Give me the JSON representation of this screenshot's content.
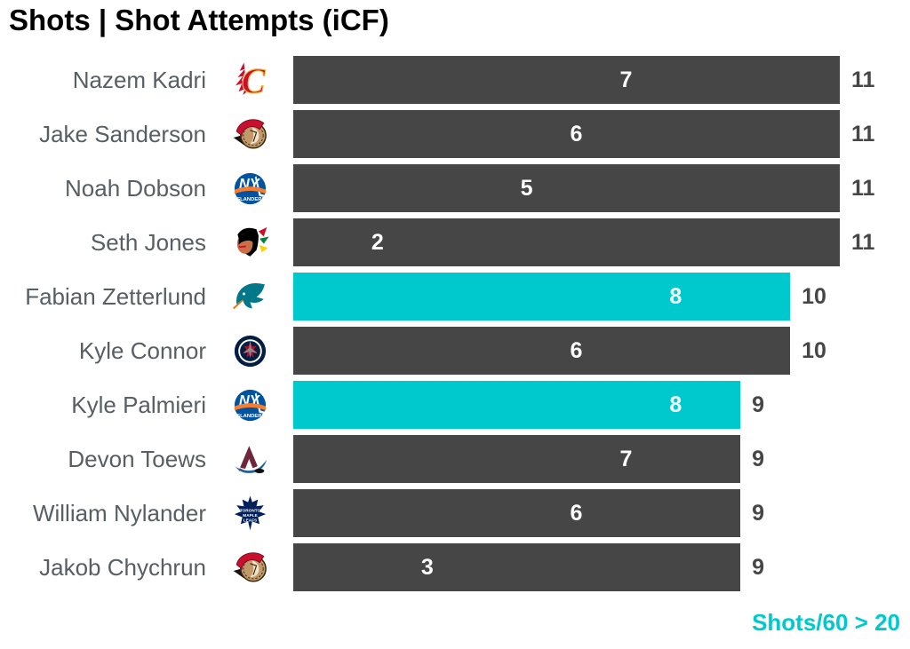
{
  "footnote": {
    "label": "Shots/60 > 20"
  },
  "colors": {
    "bar_default": "#464646",
    "bar_highlight": "#00C9CE",
    "accent": "#00C9CE",
    "bar_label": "#FFFFFF",
    "player_name": "#575E64",
    "total_label": "#464646",
    "title": "#000000"
  },
  "chart_data": {
    "type": "bar",
    "orientation": "horizontal",
    "title": "Shots | Shot Attempts (iCF)",
    "x_max": 11,
    "grid": false,
    "legend": "Teal bars indicate players with Shots/60 > 20; inner white number = Shots, bar length and right number = Shot Attempts (iCF)",
    "categories": [
      "Nazem Kadri",
      "Jake Sanderson",
      "Noah Dobson",
      "Seth Jones",
      "Fabian Zetterlund",
      "Kyle Connor",
      "Kyle Palmieri",
      "Devon Toews",
      "William Nylander",
      "Jakob Chychrun"
    ],
    "series": [
      {
        "name": "Shots",
        "values": [
          7,
          6,
          5,
          2,
          8,
          6,
          8,
          7,
          6,
          3
        ]
      },
      {
        "name": "Shot Attempts (iCF)",
        "values": [
          11,
          11,
          11,
          11,
          10,
          10,
          9,
          9,
          9,
          9
        ]
      }
    ],
    "rows": [
      {
        "player": "Nazem Kadri",
        "team": "Calgary Flames",
        "logo": "cgy",
        "shots": 7,
        "attempts": 11,
        "highlight": false
      },
      {
        "player": "Jake Sanderson",
        "team": "Ottawa Senators",
        "logo": "ott",
        "shots": 6,
        "attempts": 11,
        "highlight": false
      },
      {
        "player": "Noah Dobson",
        "team": "New York Islanders",
        "logo": "nyi",
        "shots": 5,
        "attempts": 11,
        "highlight": false
      },
      {
        "player": "Seth Jones",
        "team": "Chicago Blackhawks",
        "logo": "chi",
        "shots": 2,
        "attempts": 11,
        "highlight": false
      },
      {
        "player": "Fabian Zetterlund",
        "team": "San Jose Sharks",
        "logo": "sjs",
        "shots": 8,
        "attempts": 10,
        "highlight": true
      },
      {
        "player": "Kyle Connor",
        "team": "Winnipeg Jets",
        "logo": "wpg",
        "shots": 6,
        "attempts": 10,
        "highlight": false
      },
      {
        "player": "Kyle Palmieri",
        "team": "New York Islanders",
        "logo": "nyi",
        "shots": 8,
        "attempts": 9,
        "highlight": true
      },
      {
        "player": "Devon Toews",
        "team": "Colorado Avalanche",
        "logo": "col",
        "shots": 7,
        "attempts": 9,
        "highlight": false
      },
      {
        "player": "William Nylander",
        "team": "Toronto Maple Leafs",
        "logo": "tor",
        "shots": 6,
        "attempts": 9,
        "highlight": false
      },
      {
        "player": "Jakob Chychrun",
        "team": "Ottawa Senators",
        "logo": "ott",
        "shots": 3,
        "attempts": 9,
        "highlight": false
      }
    ]
  }
}
